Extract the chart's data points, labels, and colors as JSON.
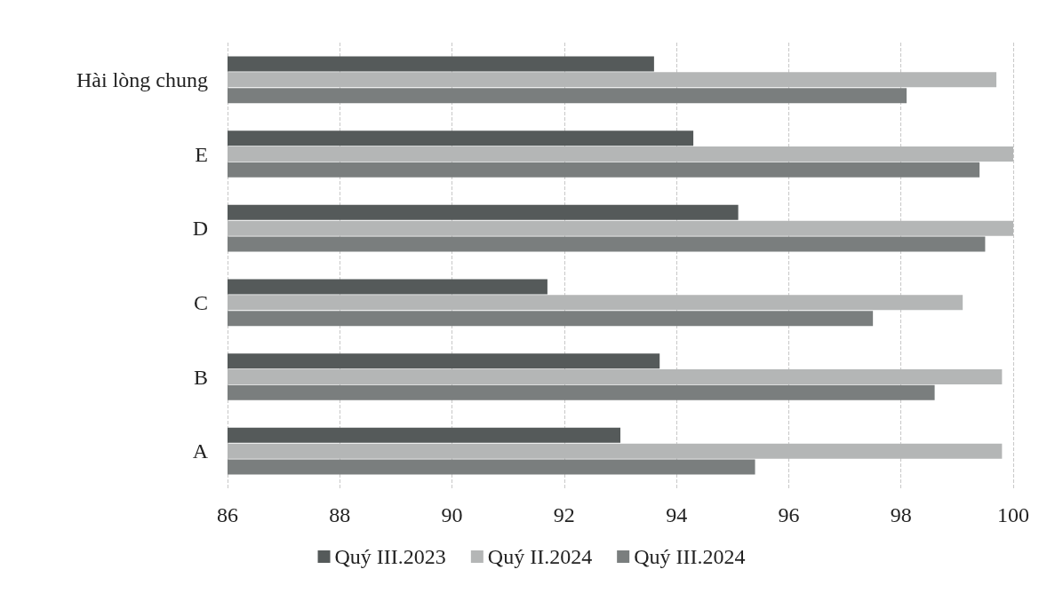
{
  "chart_data": {
    "type": "bar",
    "orientation": "horizontal",
    "categories": [
      "Hài lòng chung",
      "E",
      "D",
      "C",
      "B",
      "A"
    ],
    "series": [
      {
        "name": "Quý III.2023",
        "color": "#555a5a",
        "values": [
          93.6,
          94.3,
          95.1,
          91.7,
          93.7,
          93.0
        ]
      },
      {
        "name": "Quý II.2024",
        "color": "#b4b6b6",
        "values": [
          99.7,
          100,
          100,
          99.1,
          99.8,
          99.8
        ]
      },
      {
        "name": "Quý III.2024",
        "color": "#7a7e7e",
        "values": [
          98.1,
          99.4,
          99.5,
          97.5,
          98.6,
          95.4
        ]
      }
    ],
    "xlim": [
      86,
      100
    ],
    "xticks": [
      86,
      88,
      90,
      92,
      94,
      96,
      98,
      100
    ],
    "grid": "x",
    "legend": "bottom"
  }
}
